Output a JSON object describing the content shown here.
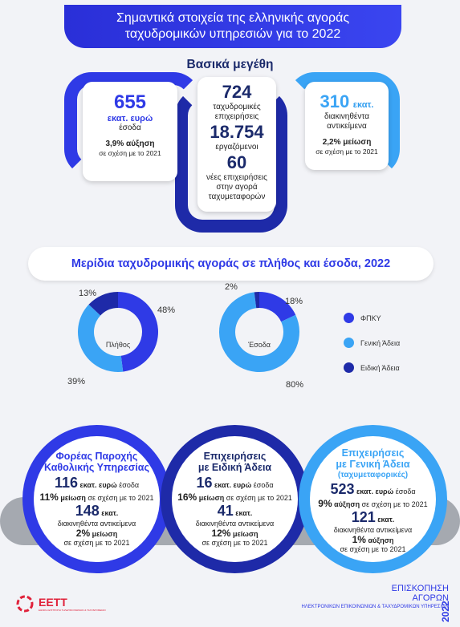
{
  "header": {
    "line1": "Σημαντικά στοιχεία της ελληνικής αγοράς",
    "line2": "ταχυδρομικών υπηρεσιών για το 2022"
  },
  "section1": {
    "title": "Βασικά μεγέθη"
  },
  "left_card": {
    "value": "655",
    "unit": "εκατ. ευρώ",
    "label": "έσοδα",
    "change_bold": "3,9% αύξηση",
    "change_rest": "σε σχέση με το 2021"
  },
  "middle_card": {
    "v1": "724",
    "l1a": "ταχυδρομικές",
    "l1b": "επιχειρήσεις",
    "v2": "18.754",
    "l2": "εργαζόμενοι",
    "v3": "60",
    "l3a": "νέες επιχειρήσεις",
    "l3b": "στην αγορά",
    "l3c": "ταχυμεταφορών"
  },
  "right_card": {
    "value": "310",
    "unit": "εκατ.",
    "label_a": "διακινηθέντα",
    "label_b": "αντικείμενα",
    "change_bold": "2,2% μείωση",
    "change_rest": "σε σχέση με το 2021"
  },
  "section2": {
    "title": "Μερίδια ταχυδρομικής αγοράς σε πλήθος και έσοδα, 2022"
  },
  "chart_data": [
    {
      "type": "pie",
      "title": "Πλήθος",
      "categories": [
        "ΦΠΚΥ",
        "Γενική Άδεια",
        "Ειδική Άδεια"
      ],
      "values": [
        48,
        39,
        13
      ],
      "labels": [
        "48%",
        "39%",
        "13%"
      ]
    },
    {
      "type": "pie",
      "title": "Έσοδα",
      "categories": [
        "ΦΠΚΥ",
        "Γενική Άδεια",
        "Ειδική Άδεια"
      ],
      "values": [
        18,
        80,
        2
      ],
      "labels": [
        "18%",
        "80%",
        "2%"
      ]
    }
  ],
  "legend": [
    {
      "label": "ΦΠΚΥ",
      "color": "#2f3ae6"
    },
    {
      "label": "Γενική Άδεια",
      "color": "#3aa4f5"
    },
    {
      "label": "Ειδική Άδεια",
      "color": "#1e2aa8"
    }
  ],
  "colors": {
    "fpky": "#2f3ae6",
    "general": "#3aa4f5",
    "special": "#1e2aa8",
    "gray": "#9a9ea6"
  },
  "bottom": [
    {
      "title1": "Φορέας Παροχής",
      "title2": "Καθολικής Υπηρεσίας",
      "v1": "116",
      "u1": "εκατ. ευρώ",
      "l1": "έσοδα",
      "p1": "11%",
      "c1": "μείωση",
      "r1": "σε σχέση με το 2021",
      "v2": "148",
      "u2": "εκατ.",
      "l2": "διακινηθέντα αντικείμενα",
      "p2": "2%",
      "c2": "μείωση",
      "r2": "σε σχέση με το 2021"
    },
    {
      "title1": "Επιχειρήσεις",
      "title2": "με Ειδική Άδεια",
      "v1": "16",
      "u1": "εκατ. ευρώ",
      "l1": "έσοδα",
      "p1": "16%",
      "c1": "μείωση",
      "r1": "σε σχέση με το 2021",
      "v2": "41",
      "u2": "εκατ.",
      "l2": "διακινηθέντα αντικείμενα",
      "p2": "12%",
      "c2": "μείωση",
      "r2": "σε σχέση με το 2021"
    },
    {
      "title1": "Επιχειρήσεις",
      "title2": "με Γενική Άδεια",
      "title3": "(ταχυμεταφορικές)",
      "v1": "523",
      "u1": "εκατ. ευρώ",
      "l1": "έσοδα",
      "p1": "9%",
      "c1": "αύξηση",
      "r1": "σε σχέση με το 2021",
      "v2": "121",
      "u2": "εκατ.",
      "l2": "διακινηθέντα αντικείμενα",
      "p2": "1%",
      "c2": "αύξηση",
      "r2": "σε σχέση με το 2021"
    }
  ],
  "footer": {
    "logo": "ΕΕΤΤ",
    "logo_sub": "ΕΘΝΙΚΗ ΕΠΙΤΡΟΠΗ ΤΗΛΕΠΙΚΟΙΝΩΝΙΩΝ & ΤΑΧΥΔΡΟΜΕΙΩΝ",
    "r1": "ΕΠΙΣΚΟΠΗΣΗ",
    "r2": "ΑΓΟΡΩΝ",
    "r3": "ΗΛΕΚΤΡΟΝΙΚΩΝ ΕΠΙΚΟΙΝΩΝΙΩΝ & ΤΑΧΥΔΡΟΜΙΚΩΝ ΥΠΗΡΕΣΙΩΝ",
    "year": "2022"
  }
}
